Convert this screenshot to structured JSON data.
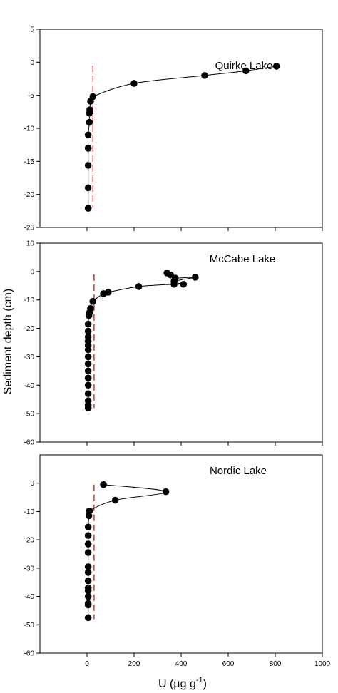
{
  "figure": {
    "ylabel": "Sediment depth (cm)",
    "xlabel_main": "U (µg g",
    "xlabel_sup": "-1",
    "xlabel_close": ")"
  },
  "chart_data": [
    {
      "type": "line",
      "title": "Quirke Lake",
      "xlim": [
        -200,
        1000
      ],
      "ylim": [
        -25,
        5
      ],
      "yticks": [
        5,
        0,
        -5,
        -10,
        -15,
        -20,
        -25
      ],
      "ytick_labels": [
        "5",
        "0",
        "-5",
        "-10",
        "-15",
        "-20",
        "-25"
      ],
      "reference_line": {
        "x": 25,
        "y_range": [
          -22,
          -0.5
        ],
        "color": "#cc0000",
        "style": "dashed"
      },
      "series": [
        {
          "x": [
            805,
            675,
            500,
            200,
            25,
            15,
            12,
            10,
            10,
            5,
            5,
            5,
            5,
            5,
            5
          ],
          "y": [
            -0.6,
            -1.3,
            -2.0,
            -3.2,
            -5.2,
            -5.9,
            -7.2,
            -7.7,
            -9.1,
            -11.0,
            -13.0,
            -13.0,
            -15.6,
            -19.0,
            -22.1
          ]
        }
      ]
    },
    {
      "type": "line",
      "title": "McCabe Lake",
      "xlim": [
        -200,
        1000
      ],
      "ylim": [
        -60,
        10
      ],
      "yticks": [
        10,
        0,
        -10,
        -20,
        -30,
        -40,
        -50,
        -60
      ],
      "ytick_labels": [
        "10",
        "0",
        "-10",
        "-20",
        "-30",
        "-40",
        "-50",
        "-60"
      ],
      "reference_line": {
        "x": 30,
        "y_range": [
          -48,
          -1
        ],
        "color": "#cc0000",
        "style": "dashed"
      },
      "series": [
        {
          "x": [
            340,
            355,
            375,
            460,
            370,
            410,
            370,
            220,
            90,
            70,
            25,
            15,
            10,
            8,
            5,
            5,
            5,
            5,
            5,
            5,
            5,
            5,
            5,
            5,
            5,
            5,
            5,
            5,
            5
          ],
          "y": [
            -0.5,
            -1.2,
            -2.3,
            -2.0,
            -3.5,
            -4.5,
            -4.5,
            -5.3,
            -7.3,
            -7.8,
            -10.5,
            -13.0,
            -14.5,
            -15.5,
            -18.5,
            -21.0,
            -23.0,
            -24.5,
            -26.0,
            -27.5,
            -30.0,
            -32.5,
            -35.0,
            -37.5,
            -40.0,
            -43.0,
            -45.5,
            -47.0,
            -48.0
          ]
        }
      ]
    },
    {
      "type": "line",
      "title": "Nordic Lake",
      "xlim": [
        -200,
        1000
      ],
      "ylim": [
        -60,
        10
      ],
      "yticks": [
        0,
        -10,
        -20,
        -30,
        -40,
        -50,
        -60
      ],
      "ytick_labels": [
        "0",
        "-10",
        "-20",
        "-30",
        "-40",
        "-50",
        "-60"
      ],
      "reference_line": {
        "x": 30,
        "y_range": [
          -48,
          -0.5
        ],
        "color": "#cc0000",
        "style": "dashed"
      },
      "series": [
        {
          "x": [
            70,
            335,
            120,
            10,
            8,
            5,
            5,
            5,
            5,
            5,
            5,
            5,
            5,
            5,
            5,
            5,
            5,
            5
          ],
          "y": [
            -0.5,
            -3.0,
            -6.0,
            -9.8,
            -11.5,
            -15.5,
            -18.5,
            -21.5,
            -24.5,
            -29.5,
            -31.5,
            -34.5,
            -37.0,
            -38.0,
            -40.0,
            -42.5,
            -43.0,
            -47.5
          ]
        }
      ]
    }
  ],
  "shared_x_axis": {
    "ticks": [
      0,
      200,
      400,
      600,
      800,
      1000
    ],
    "tick_labels": [
      "0",
      "200",
      "400",
      "600",
      "800",
      "1000"
    ]
  }
}
